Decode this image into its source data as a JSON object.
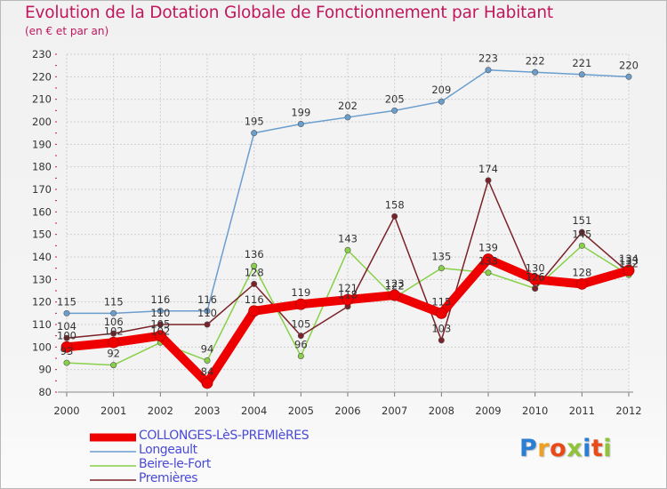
{
  "title": "Evolution de la Dotation Globale de Fonctionnement par Habitant",
  "subtitle": "(en € et par an)",
  "logo": {
    "text": "Proxiti",
    "colors": [
      "#2a7fd4",
      "#f0a020",
      "#e84a1a",
      "#8fc33a",
      "#2a7fd4",
      "#e84a1a",
      "#8fc33a"
    ]
  },
  "chart_data": {
    "type": "line",
    "x": [
      2000,
      2001,
      2002,
      2003,
      2004,
      2005,
      2006,
      2007,
      2008,
      2009,
      2010,
      2011,
      2012
    ],
    "ylim": [
      80,
      230
    ],
    "yticks": [
      80,
      90,
      100,
      110,
      120,
      130,
      140,
      150,
      160,
      170,
      180,
      190,
      200,
      210,
      220,
      230
    ],
    "grid": true,
    "legend_position": "bottom-left",
    "series": [
      {
        "name": "COLLONGES-LèS-PREMIèRES",
        "color": "#ee0000",
        "values": [
          100,
          102,
          105,
          84,
          116,
          119,
          121,
          123,
          115,
          139,
          130,
          128,
          134
        ]
      },
      {
        "name": "Longeault",
        "color": "#6a9ecf",
        "values": [
          115,
          115,
          116,
          116,
          195,
          199,
          202,
          205,
          209,
          223,
          222,
          221,
          220
        ]
      },
      {
        "name": "Beire-le-Fort",
        "color": "#88d048",
        "values": [
          93,
          92,
          102,
          94,
          136,
          96,
          143,
          122,
          135,
          133,
          126,
          145,
          132
        ]
      },
      {
        "name": "Premières",
        "color": "#7a2228",
        "values": [
          104,
          106,
          110,
          110,
          128,
          105,
          118,
          158,
          103,
          174,
          126,
          151,
          133
        ]
      }
    ]
  }
}
